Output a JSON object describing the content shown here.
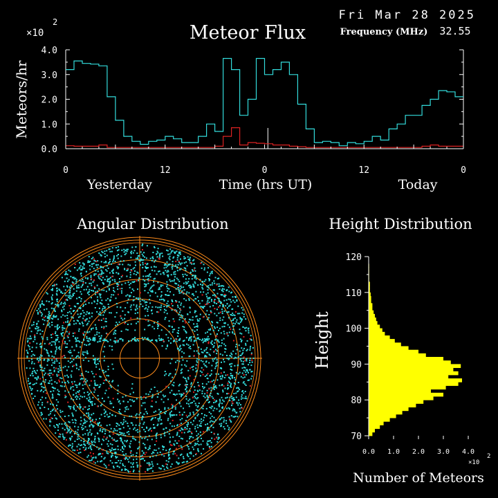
{
  "header": {
    "date": "Fri Mar 28 2025",
    "frequency_label": "Frequency (MHz)",
    "frequency_value": "32.55"
  },
  "colors": {
    "background": "#000000",
    "axis": "#ffffff",
    "total_series": "#33dddd",
    "red_series": "#dd2222",
    "rings": "#ff8c1a",
    "histogram": "#ffff00",
    "dots_main": "#33dddd",
    "dots_red": "#dd2222"
  },
  "chart_data": [
    {
      "type": "line",
      "title": "Meteor Flux",
      "ylabel": "Meteors/hr",
      "xlabel": "Time (hrs UT)",
      "y_multiplier": "×10",
      "y_multiplier_exp": "2",
      "x_range": [
        0,
        48
      ],
      "ylim": [
        0,
        4.0
      ],
      "y_ticks": [
        "0.0",
        "1.0",
        "2.0",
        "3.0",
        "4.0"
      ],
      "x_ticks": [
        {
          "x": 0,
          "label": "0"
        },
        {
          "x": 12,
          "label": "12"
        },
        {
          "x": 24,
          "label": "0"
        },
        {
          "x": 36,
          "label": "12"
        },
        {
          "x": 48,
          "label": "0"
        }
      ],
      "day_labels": [
        {
          "x": 6.5,
          "label": "Yesterday"
        },
        {
          "x": 42.5,
          "label": "Today"
        }
      ],
      "marker_x": 24.4,
      "series": [
        {
          "name": "",
          "step": true,
          "values": [
            3.2,
            3.55,
            3.45,
            3.42,
            3.35,
            2.1,
            1.15,
            0.5,
            0.3,
            0.18,
            0.3,
            0.35,
            0.5,
            0.4,
            0.25,
            0.25,
            0.5,
            1.0,
            0.7,
            3.65,
            3.2,
            1.35,
            2.0,
            3.65,
            3.0,
            3.2,
            3.5,
            3.0,
            1.8,
            0.8,
            0.25,
            0.3,
            0.25,
            0.12,
            0.25,
            0.2,
            0.3,
            0.5,
            0.35,
            0.8,
            1.0,
            1.35,
            1.35,
            1.75,
            2.0,
            2.35,
            2.3,
            2.1
          ]
        },
        {
          "name": "",
          "step": true,
          "values": [
            0.12,
            0.1,
            0.1,
            0.1,
            0.15,
            0.05,
            0.05,
            0.05,
            0.05,
            0.05,
            0.05,
            0.05,
            0.05,
            0.05,
            0.05,
            0.05,
            0.05,
            0.05,
            0.1,
            0.5,
            0.85,
            0.15,
            0.25,
            0.22,
            0.2,
            0.15,
            0.15,
            0.1,
            0.08,
            0.05,
            0.05,
            0.05,
            0.05,
            0.05,
            0.05,
            0.05,
            0.05,
            0.05,
            0.05,
            0.05,
            0.05,
            0.05,
            0.05,
            0.1,
            0.15,
            0.1,
            0.1,
            0.1
          ]
        }
      ]
    },
    {
      "type": "scatter",
      "title": "Angular Distribution",
      "polar": true,
      "rings": 6,
      "series": [
        {
          "name": "",
          "approx_points": 3200
        },
        {
          "name": "",
          "approx_points": 220
        }
      ]
    },
    {
      "type": "bar",
      "orientation": "horizontal",
      "title": "Height Distribution",
      "ylabel": "Height",
      "xlabel": "Number of Meteors",
      "x_multiplier": "×10",
      "x_multiplier_exp": "2",
      "ylim": [
        70,
        120
      ],
      "xlim": [
        0,
        4.0
      ],
      "y_ticks": [
        "70",
        "80",
        "90",
        "100",
        "110",
        "120"
      ],
      "x_ticks": [
        "0.0",
        "1.0",
        "2.0",
        "3.0",
        "4.0"
      ],
      "bins_start": 70,
      "bin_width": 1,
      "values": [
        0.15,
        0.25,
        0.45,
        0.6,
        0.85,
        1.1,
        1.35,
        1.6,
        1.9,
        2.2,
        2.6,
        3.0,
        2.5,
        3.1,
        3.6,
        3.75,
        3.2,
        3.6,
        3.4,
        3.7,
        3.3,
        3.0,
        2.3,
        2.0,
        1.6,
        1.3,
        1.05,
        0.85,
        0.65,
        0.55,
        0.45,
        0.35,
        0.3,
        0.25,
        0.2,
        0.15,
        0.15,
        0.1,
        0.1,
        0.08,
        0.05,
        0.05,
        0.05,
        0.02,
        0.02,
        0.02,
        0.02,
        0.02,
        0.0,
        0.0
      ]
    }
  ]
}
